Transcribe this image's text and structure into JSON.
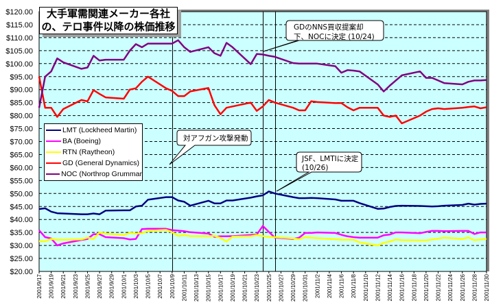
{
  "chart_data": {
    "type": "line",
    "title": "大手軍需関連メーカー各社の、テロ事件以降の株価推移",
    "title_lines": [
      "大手軍需関連メーカー各社",
      "の、テロ事件以降の株価推移"
    ],
    "xlabel": "",
    "ylabel": "",
    "ylim": [
      20,
      120
    ],
    "ystep": 5,
    "ytick_labels": [
      "$20.00",
      "$25.00",
      "$30.00",
      "$35.00",
      "$40.00",
      "$45.00",
      "$50.00",
      "$55.00",
      "$60.00",
      "$65.00",
      "$70.00",
      "$75.00",
      "$80.00",
      "$85.00",
      "$90.00",
      "$95.00",
      "$100.00",
      "$105.00",
      "$110.00",
      "$115.00",
      "$120.00"
    ],
    "grid": true,
    "xrange_days": [
      0,
      74
    ],
    "xtick_labels": [
      "2001/9/17",
      "2001/9/19",
      "2001/9/21",
      "2001/9/23",
      "2001/9/25",
      "2001/9/27",
      "2001/9/29",
      "2001/10/1",
      "2001/10/3",
      "2001/10/5",
      "2001/10/7",
      "2001/10/9",
      "2001/10/11",
      "2001/10/13",
      "2001/10/15",
      "2001/10/17",
      "2001/10/19",
      "2001/10/21",
      "2001/10/23",
      "2001/10/25",
      "2001/10/27",
      "2001/10/29",
      "2001/10/31",
      "2001/11/2",
      "2001/11/4",
      "2001/11/6",
      "2001/11/8",
      "2001/11/10",
      "2001/11/12",
      "2001/11/14",
      "2001/11/16",
      "2001/11/18",
      "2001/11/20",
      "2001/11/22",
      "2001/11/24",
      "2001/11/26",
      "2001/11/28",
      "2001/11/30"
    ],
    "x_days": [
      0,
      1,
      2,
      3,
      4,
      7,
      8,
      9,
      10,
      11,
      14,
      15,
      16,
      17,
      18,
      21,
      22,
      23,
      24,
      25,
      28,
      29,
      30,
      31,
      32,
      35,
      36,
      37,
      38,
      39,
      42,
      43,
      44,
      45,
      46,
      49,
      50,
      51,
      52,
      53,
      56,
      57,
      58,
      59,
      60,
      63,
      64,
      65,
      66,
      67,
      70,
      71,
      72,
      73,
      74
    ],
    "series": [
      {
        "name": "LMT (Lockheed Martin)",
        "color": "#000080",
        "values": [
          44.0,
          44.3,
          43.0,
          42.4,
          42.3,
          42.0,
          42.0,
          42.3,
          42.0,
          43.4,
          43.5,
          43.5,
          45.0,
          45.3,
          47.6,
          48.6,
          48.6,
          47.3,
          46.8,
          45.3,
          47.2,
          46.2,
          46.2,
          47.3,
          47.3,
          48.4,
          48.9,
          49.3,
          50.8,
          50.0,
          48.6,
          48.2,
          48.2,
          48.3,
          48.2,
          47.7,
          47.2,
          47.2,
          47.2,
          46.3,
          44.1,
          44.2,
          44.8,
          45.2,
          45.3,
          45.2,
          45.1,
          45.0,
          45.1,
          45.3,
          45.6,
          46.1,
          45.7,
          46.0,
          46.1
        ]
      },
      {
        "name": "BA (Boeing)",
        "color": "#ff00ff",
        "values": [
          35.8,
          33.2,
          32.7,
          30.0,
          30.8,
          32.1,
          32.5,
          34.3,
          34.3,
          33.2,
          32.8,
          32.3,
          32.5,
          36.3,
          36.4,
          36.4,
          35.9,
          35.7,
          35.5,
          35.1,
          34.6,
          33.3,
          33.5,
          33.5,
          33.6,
          34.0,
          34.2,
          37.5,
          35.2,
          33.0,
          32.5,
          33.0,
          34.8,
          34.8,
          35.0,
          34.8,
          34.1,
          33.5,
          33.2,
          33.0,
          33.0,
          33.9,
          34.2,
          35.0,
          35.0,
          34.7,
          35.2,
          35.6,
          35.6,
          35.5,
          35.6,
          35.6,
          34.4,
          35.0,
          35.0
        ]
      },
      {
        "name": "RTN (Raytheon)",
        "color": "#ffff00",
        "values": [
          31.6,
          31.6,
          32.5,
          32.2,
          32.2,
          32.3,
          33.0,
          32.5,
          35.0,
          34.5,
          34.0,
          34.8,
          34.6,
          34.7,
          35.6,
          36.0,
          35.1,
          33.7,
          34.0,
          33.6,
          33.5,
          33.7,
          32.9,
          31.5,
          33.4,
          33.5,
          34.0,
          33.6,
          33.3,
          33.2,
          32.7,
          32.4,
          33.2,
          33.0,
          32.8,
          32.4,
          32.2,
          32.2,
          32.2,
          31.2,
          30.0,
          31.0,
          31.5,
          32.3,
          32.0,
          31.9,
          31.9,
          32.3,
          32.6,
          33.0,
          32.5,
          33.1,
          32.0,
          32.3,
          32.5
        ]
      },
      {
        "name": "GD (General Dynamics)",
        "color": "#ff0000",
        "values": [
          95.0,
          83.0,
          83.0,
          79.5,
          82.5,
          86.0,
          85.5,
          89.8,
          88.3,
          87.0,
          86.5,
          90.0,
          90.5,
          93.0,
          95.0,
          90.5,
          89.5,
          87.5,
          87.5,
          89.3,
          90.6,
          84.0,
          80.5,
          83.0,
          83.5,
          85.0,
          81.8,
          83.5,
          86.0,
          85.0,
          83.0,
          82.0,
          82.0,
          85.5,
          85.2,
          84.8,
          84.8,
          83.2,
          82.0,
          83.0,
          83.0,
          80.0,
          79.5,
          80.0,
          77.0,
          80.0,
          81.5,
          82.5,
          82.8,
          82.5,
          83.0,
          83.3,
          83.5,
          82.8,
          83.2
        ]
      },
      {
        "name": "NOC (Northrop Grummar",
        "color": "#800080",
        "values": [
          83.0,
          95.0,
          97.0,
          102.0,
          100.5,
          98.0,
          98.5,
          103.0,
          101.2,
          101.5,
          101.5,
          105.0,
          107.5,
          106.3,
          107.7,
          107.7,
          107.7,
          109.0,
          106.3,
          104.5,
          106.3,
          104.0,
          103.0,
          108.0,
          106.3,
          99.8,
          103.7,
          103.5,
          103.0,
          102.6,
          100.2,
          100.0,
          100.0,
          100.0,
          100.0,
          99.0,
          96.5,
          97.5,
          97.3,
          97.0,
          92.0,
          89.3,
          91.5,
          93.5,
          95.5,
          97.0,
          94.5,
          94.5,
          93.5,
          92.5,
          92.0,
          93.0,
          93.5,
          93.5,
          93.7
        ]
      }
    ],
    "markers": [
      {
        "day": 22,
        "label": "対アフガン攻撃発動"
      },
      {
        "day": 37,
        "label": "GDのNNS買収提案却下、NOCに決定 (10/24)"
      },
      {
        "day": 39,
        "label": "JSF、LMTIに決定 (10/26)"
      }
    ],
    "callouts": {
      "afghan": "対アフガン攻撃発動",
      "gd_line1": "GDのNNS買収提案却",
      "gd_line2": "下、NOCに決定 (10/24)",
      "jsf_line1": "JSF、LMTIに決定",
      "jsf_line2": "(10/26)"
    },
    "legend_position": "left",
    "colors": {
      "plot_bg": "#ccffff",
      "frame_shadow": "#808080"
    }
  }
}
